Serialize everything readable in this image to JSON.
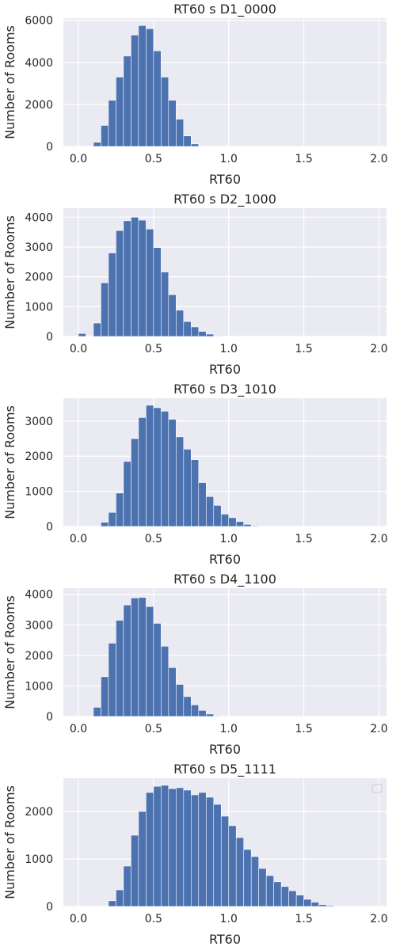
{
  "chart_data": [
    {
      "type": "bar",
      "title": "RT60 s D1_0000",
      "xlabel": "RT60",
      "ylabel": "Number of Rooms",
      "xlim": [
        -0.1,
        2.05
      ],
      "ylim": [
        0,
        6100
      ],
      "xticks": [
        0.0,
        0.5,
        1.0,
        1.5,
        2.0
      ],
      "xtick_labels": [
        "0.0",
        "0.5",
        "1.0",
        "1.5",
        "2.0"
      ],
      "yticks": [
        0,
        2000,
        4000,
        6000
      ],
      "ytick_labels": [
        "0",
        "2000",
        "4000",
        "6000"
      ],
      "bin_start": 0.0,
      "bin_width": 0.05,
      "values": [
        0,
        0,
        200,
        1000,
        2200,
        3300,
        4300,
        5300,
        5750,
        5600,
        4550,
        3300,
        2200,
        1300,
        500,
        120,
        20,
        0,
        0,
        0,
        0,
        0,
        0,
        0,
        0,
        0,
        0,
        0,
        0,
        0,
        0,
        0,
        0,
        0,
        0,
        0,
        0,
        0,
        0,
        0
      ],
      "legend": false
    },
    {
      "type": "bar",
      "title": "RT60 s D2_1000",
      "xlabel": "RT60",
      "ylabel": "Number of Rooms",
      "xlim": [
        -0.1,
        2.05
      ],
      "ylim": [
        0,
        4300
      ],
      "xticks": [
        0.0,
        0.5,
        1.0,
        1.5,
        2.0
      ],
      "xtick_labels": [
        "0.0",
        "0.5",
        "1.0",
        "1.5",
        "2.0"
      ],
      "yticks": [
        0,
        1000,
        2000,
        3000,
        4000
      ],
      "ytick_labels": [
        "0",
        "1000",
        "2000",
        "3000",
        "4000"
      ],
      "bin_start": 0.0,
      "bin_width": 0.05,
      "values": [
        100,
        0,
        450,
        1800,
        2800,
        3550,
        3880,
        4000,
        3900,
        3600,
        2980,
        2160,
        1400,
        880,
        500,
        320,
        170,
        80,
        20,
        0,
        0,
        0,
        0,
        0,
        0,
        0,
        0,
        0,
        0,
        0,
        0,
        0,
        0,
        0,
        0,
        0,
        0,
        0,
        0,
        0
      ],
      "legend": false
    },
    {
      "type": "bar",
      "title": "RT60 s D3_1010",
      "xlabel": "RT60",
      "ylabel": "Number of Rooms",
      "xlim": [
        -0.1,
        2.05
      ],
      "ylim": [
        0,
        3650
      ],
      "xticks": [
        0.0,
        0.5,
        1.0,
        1.5,
        2.0
      ],
      "xtick_labels": [
        "0.0",
        "0.5",
        "1.0",
        "1.5",
        "2.0"
      ],
      "yticks": [
        0,
        1000,
        2000,
        3000
      ],
      "ytick_labels": [
        "0",
        "1000",
        "2000",
        "3000"
      ],
      "bin_start": 0.0,
      "bin_width": 0.05,
      "values": [
        0,
        0,
        0,
        120,
        400,
        950,
        1850,
        2500,
        3100,
        3450,
        3380,
        3280,
        3050,
        2550,
        2200,
        1900,
        1250,
        850,
        600,
        350,
        250,
        140,
        60,
        20,
        0,
        0,
        0,
        0,
        0,
        0,
        0,
        0,
        0,
        0,
        0,
        0,
        0,
        0,
        0,
        0
      ],
      "legend": false
    },
    {
      "type": "bar",
      "title": "RT60 s D4_1100",
      "xlabel": "RT60",
      "ylabel": "Number of Rooms",
      "xlim": [
        -0.1,
        2.05
      ],
      "ylim": [
        0,
        4200
      ],
      "xticks": [
        0.0,
        0.5,
        1.0,
        1.5,
        2.0
      ],
      "xtick_labels": [
        "0.0",
        "0.5",
        "1.0",
        "1.5",
        "2.0"
      ],
      "yticks": [
        0,
        1000,
        2000,
        3000,
        4000
      ],
      "ytick_labels": [
        "0",
        "1000",
        "2000",
        "3000",
        "4000"
      ],
      "bin_start": 0.0,
      "bin_width": 0.05,
      "values": [
        0,
        0,
        300,
        1300,
        2400,
        3150,
        3650,
        3880,
        3900,
        3600,
        3050,
        2300,
        1600,
        1050,
        650,
        380,
        200,
        80,
        20,
        0,
        0,
        0,
        0,
        0,
        0,
        0,
        0,
        0,
        0,
        0,
        0,
        0,
        0,
        0,
        0,
        0,
        0,
        0,
        0,
        0
      ],
      "legend": false
    },
    {
      "type": "bar",
      "title": "RT60 s D5_1111",
      "xlabel": "RT60",
      "ylabel": "Number of Rooms",
      "xlim": [
        -0.1,
        2.05
      ],
      "ylim": [
        0,
        2700
      ],
      "xticks": [
        0.0,
        0.5,
        1.0,
        1.5,
        2.0
      ],
      "xtick_labels": [
        "0.0",
        "0.5",
        "1.0",
        "1.5",
        "2.0"
      ],
      "yticks": [
        0,
        1000,
        2000
      ],
      "ytick_labels": [
        "0",
        "1000",
        "2000"
      ],
      "bin_start": 0.0,
      "bin_width": 0.05,
      "values": [
        0,
        0,
        0,
        0,
        120,
        350,
        850,
        1500,
        2000,
        2400,
        2530,
        2550,
        2480,
        2500,
        2450,
        2350,
        2400,
        2300,
        2150,
        1900,
        1700,
        1450,
        1200,
        1050,
        800,
        650,
        520,
        420,
        330,
        240,
        150,
        90,
        40,
        20,
        0,
        0,
        0,
        0,
        0,
        0
      ],
      "legend": true
    }
  ]
}
